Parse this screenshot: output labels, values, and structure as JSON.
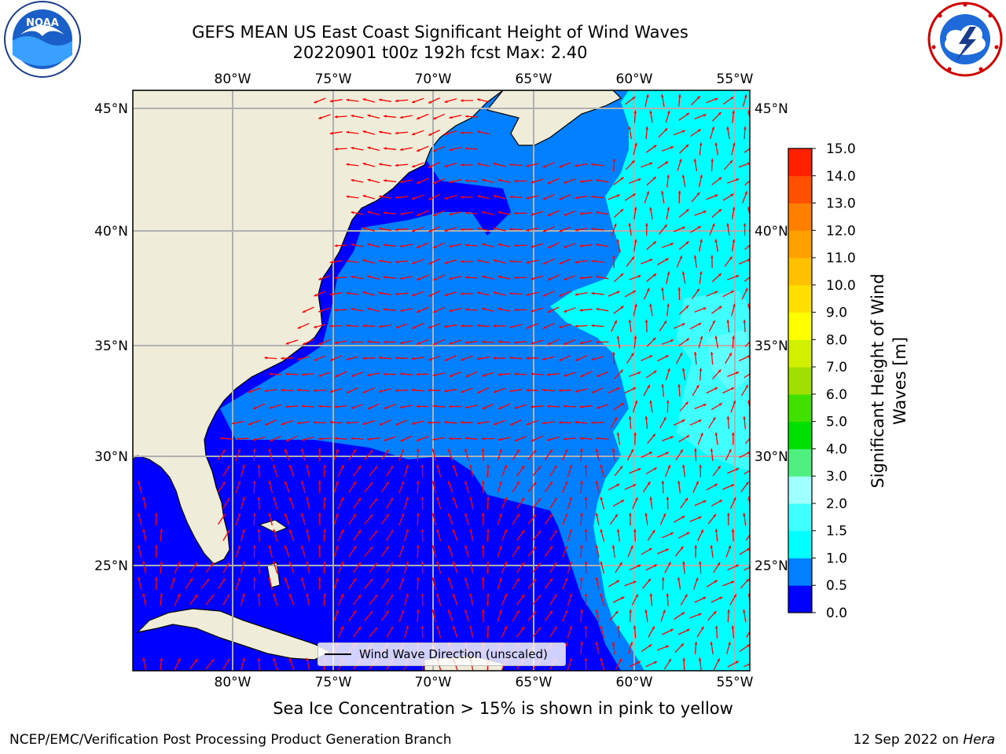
{
  "header": {
    "title_line1": "GEFS MEAN US East Coast Significant Height of Wind Waves",
    "title_line2": "20220901 t00z 192h fcst   Max: 2.40"
  },
  "logos": {
    "left": "noaa-logo",
    "right": "nws-logo"
  },
  "map": {
    "lon_labels": [
      "80°W",
      "75°W",
      "70°W",
      "65°W",
      "60°W",
      "55°W"
    ],
    "lat_labels": [
      "45°N",
      "40°N",
      "35°N",
      "30°N",
      "25°N"
    ],
    "lon_range": [
      -85,
      -54.3
    ],
    "lat_range": [
      20.5,
      46
    ],
    "legend_label": "Wind Wave Direction (unscaled)",
    "arrow_color": "#ff0000",
    "land_color": "#efecda",
    "grid_color": "#b0b0b0"
  },
  "colorbar": {
    "label": "Significant Height of Wind Waves [m]",
    "label_line1": "Significant Height of Wind",
    "label_line2": "Waves [m]",
    "ticks": [
      "0.0",
      "0.5",
      "1.0",
      "1.5",
      "2.0",
      "3.0",
      "4.0",
      "5.0",
      "6.0",
      "7.0",
      "8.0",
      "9.0",
      "10.0",
      "11.0",
      "12.0",
      "13.0",
      "14.0",
      "15.0"
    ],
    "colors": [
      "#0000ff",
      "#0080ff",
      "#00ffff",
      "#40ffff",
      "#a0ffff",
      "#50f080",
      "#00e000",
      "#40e000",
      "#a0e000",
      "#d0f000",
      "#ffff00",
      "#ffe000",
      "#ffc000",
      "#ffa000",
      "#ff8000",
      "#ff5000",
      "#ff2000"
    ]
  },
  "footer": {
    "note": "Sea Ice Concentration > 15% is shown in pink to yellow",
    "left": "NCEP/EMC/Verification Post Processing Product Generation Branch",
    "right_date": "12 Sep 2022 on",
    "right_host": "Hera"
  }
}
